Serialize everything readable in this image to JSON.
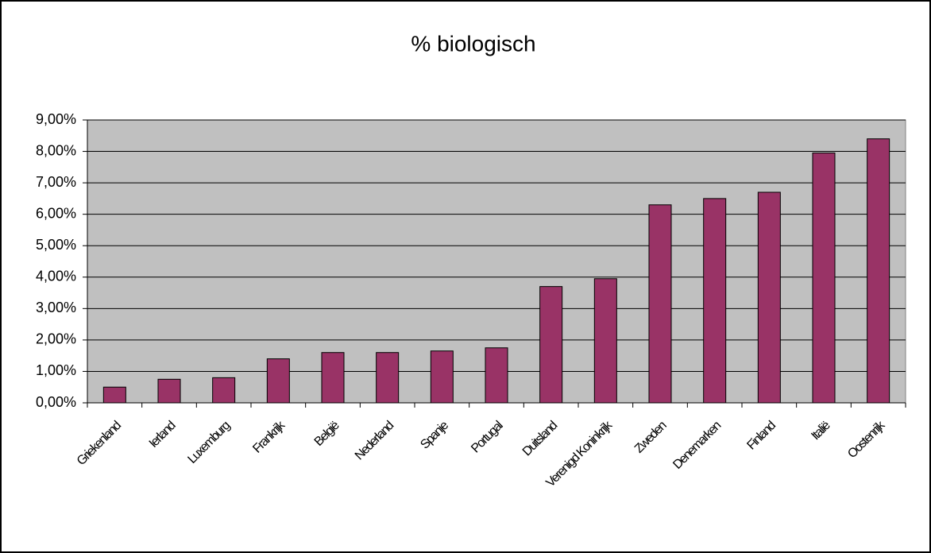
{
  "chart_data": {
    "type": "bar",
    "title": "% biologisch",
    "categories": [
      "Griekenland",
      "Ierland",
      "Luxemburg",
      "Frankrijk",
      "België",
      "Nederland",
      "Spanje",
      "Portugal",
      "Duitsland",
      "Verenigd Koninkrijk",
      "Zweden",
      "Denemarken",
      "Finland",
      "Italië",
      "Oostenrijk"
    ],
    "values": [
      0.5,
      0.75,
      0.8,
      1.4,
      1.6,
      1.6,
      1.65,
      1.75,
      3.7,
      3.95,
      6.3,
      6.5,
      6.7,
      7.95,
      8.4
    ],
    "color": "#993366",
    "ylim": [
      0,
      9
    ],
    "yticks": [
      {
        "value": 0,
        "label": "0,00%"
      },
      {
        "value": 1,
        "label": "1,00%"
      },
      {
        "value": 2,
        "label": "2,00%"
      },
      {
        "value": 3,
        "label": "3,00%"
      },
      {
        "value": 4,
        "label": "4,00%"
      },
      {
        "value": 5,
        "label": "5,00%"
      },
      {
        "value": 6,
        "label": "6,00%"
      },
      {
        "value": 7,
        "label": "7,00%"
      },
      {
        "value": 8,
        "label": "8,00%"
      },
      {
        "value": 9,
        "label": "9,00%"
      }
    ],
    "grid": true
  }
}
